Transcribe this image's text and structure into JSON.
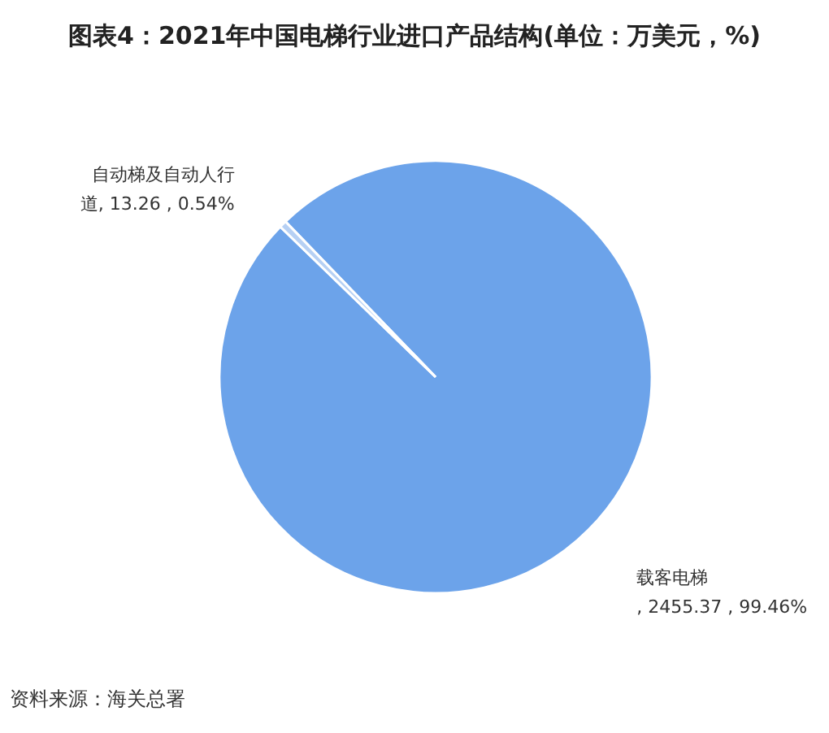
{
  "chart_data": {
    "type": "pie",
    "title": "图表4：2021年中国电梯行业进口产品结构(单位：万美元，%)",
    "categories": [
      "载客电梯",
      "自动梯及自动人行道"
    ],
    "values": [
      2455.37,
      13.26
    ],
    "value_labels": [
      ", 2455.37 , 99.46%",
      ", 13.26 , 0.54%"
    ],
    "colors": [
      "#6ca3ea",
      "#b6d0f4"
    ],
    "annotations": [
      "资料来源：海关总署"
    ]
  }
}
